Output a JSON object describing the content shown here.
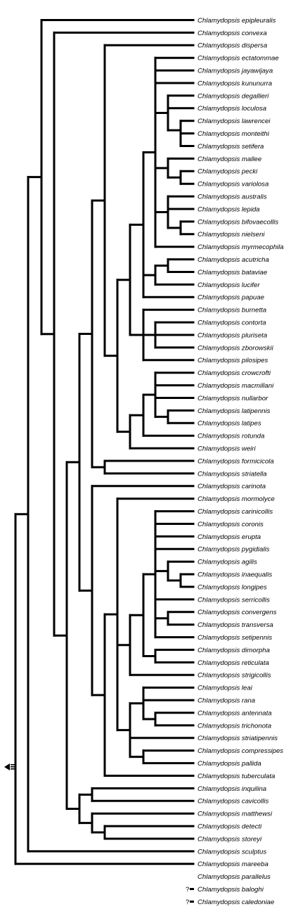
{
  "tree": {
    "taxa": [
      "Chlamydopsis epipleuralis",
      "Chlamydopsis convexa",
      "Chlamydopsis dispersa",
      "Chlamydopsis ectatommae",
      "Chlamydopsis jayawijaya",
      "Chlamydopsis kununurra",
      "Chlamydopsis degallieri",
      "Chlamydopsis loculosa",
      "Chlamydopsis lawrencei",
      "Chlamydopsis monteithi",
      "Chlamydopsis setifera",
      "Chlamydopsis mallee",
      "Chlamydopsis pecki",
      "Chlamydopsis variolosa",
      "Chlamydopsis australis",
      "Chlamydopsis lepida",
      "Chlamydopsis bifovaecollis",
      "Chlamydopsis nielseni",
      "Chlamydopsis myrmecophila",
      "Chlamydopsis acutricha",
      "Chlamydopsis bataviae",
      "Chlamydopsis lucifer",
      "Chlamydopsis papuae",
      "Chlamydopsis burnetta",
      "Chlamydopsis contorta",
      "Chlamydopsis pluriseta",
      "Chlamydopsis zborowskii",
      "Chlamydopsis pilosipes",
      "Chlamydopsis crowcrofti",
      "Chlamydopsis macmillani",
      "Chlamydopsis nullarbor",
      "Chlamydopsis latipennis",
      "Chlamydopsis latipes",
      "Chlamydopsis rotunda",
      "Chlamydopsis weiri",
      "Chlamydopsis formicicola",
      "Chlamydopsis striatella",
      "Chlamydopsis carinota",
      "Chlamydopsis mormolyce",
      "Chlamydopsis carinicollis",
      "Chlamydopsis coronis",
      "Chlamydopsis erupta",
      "Chlamydopsis pygidialis",
      "Chlamydopsis agilis",
      "Chlamydopsis inaequalis",
      "Chlamydopsis longipes",
      "Chlamydopsis serricollis",
      "Chlamydopsis convergens",
      "Chlamydopsis transversa",
      "Chlamydopsis setipennis",
      "Chlamydopsis dimorpha",
      "Chlamydopsis reticulata",
      "Chlamydopsis strigicollis",
      "Chlamydopsis leai",
      "Chlamydopsis rana",
      "Chlamydopsis antennata",
      "Chlamydopsis trichonota",
      "Chlamydopsis striatipennis",
      "Chlamydopsis compressipes",
      "Chlamydopsis pallida",
      "Chlamydopsis tuberculata",
      "Chlamydopsis inquilina",
      "Chlamydopsis cavicollis",
      "Chlamydopsis matthewsi",
      "Chlamydopsis detecti",
      "Chlamydopsis storeyi",
      "Chlamydopsis sculptus",
      "Chlamydopsis mareeba",
      "Chlamydopsis parallelus"
    ],
    "unplaced": [
      {
        "mark": "?",
        "name": "Chlamydopsis baloghi"
      },
      {
        "mark": "?",
        "name": "Chlamydopsis caledoniae"
      }
    ],
    "newick": "(((epipleuralis,(convexa,((((dispersa,((((ectatommae,jayawijaya,kununurra,(degallieri,loculosa,(lawrencei,(monteithi,setifera))),(mallee,(pecki,variolosa)),(australis,lepida,(bifovaecollis,nielseni)),myrmecophila),((acutricha,bataviae),lucifer),papuae),(burnetta,(contorta,pluriseta,zborowskii),pilosipes)),(((crowcrofti,macmillani,nullarbor,(latipennis,latipes)),rotunda),weiri))),(formicicola,striatella)),(carinota,((mormolyce,(((carinicollis,coronis,erupta,pygidialis,(agilis,(inaequalis,longipes)),serricollis,(convergens,transversa),setipennis),(dimorpha,reticulata)),strigicollis),((leai,rana,(antennata,trichonota)),striatipennis,(compressipes,pallida))),tuberculata))),((inquilina,cavicollis),(matthewsi,(detecti,storeyi)))))),sculptus),mareeba),parallelus);",
    "collapsed_icon": "left-arrow-with-bars-icon",
    "unplaced_icon": "question-mark-with-bar-icon"
  }
}
